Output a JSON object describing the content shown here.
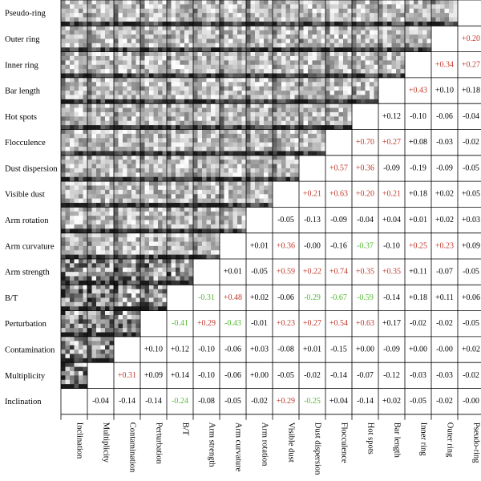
{
  "chart_data": {
    "type": "heatmap",
    "title": "",
    "variables": [
      "Inclination",
      "Multiplicity",
      "Contamination",
      "Perturbation",
      "B/T",
      "Arm strength",
      "Arm curvature",
      "Arm rotation",
      "Visible dust",
      "Dust dispersion",
      "Flocculence",
      "Hot spots",
      "Bar length",
      "Inner ring",
      "Outer ring",
      "Pseudo-ring"
    ],
    "colors": {
      "positive": "#c0392b",
      "negative": "#52b82f",
      "neutral": "#000000"
    },
    "upper_triangle_note": "density histograms (grayscale)",
    "correlations": {
      "Outer ring": [
        "+0.20"
      ],
      "Inner ring": [
        "+0.34",
        "+0.27"
      ],
      "Bar length": [
        "+0.43",
        "+0.10",
        "+0.18"
      ],
      "Hot spots": [
        "+0.12",
        "-0.10",
        "-0.06",
        "-0.04"
      ],
      "Flocculence": [
        "+0.70",
        "+0.27",
        "+0.08",
        "-0.03",
        "-0.02"
      ],
      "Dust dispersion": [
        "+0.57",
        "+0.36",
        "-0.09",
        "-0.19",
        "-0.09",
        "-0.05"
      ],
      "Visible dust": [
        "+0.21",
        "+0.63",
        "+0.20",
        "+0.21",
        "+0.18",
        "+0.02",
        "+0.05"
      ],
      "Arm rotation": [
        "-0.05",
        "-0.13",
        "-0.09",
        "-0.04",
        "+0.04",
        "+0.01",
        "+0.02",
        "+0.03"
      ],
      "Arm curvature": [
        "+0.01",
        "+0.36",
        "-0.00",
        "-0.16",
        "-0.37",
        "-0.10",
        "+0.25",
        "+0.23",
        "+0.09"
      ],
      "Arm strength": [
        "+0.01",
        "-0.05",
        "+0.59",
        "+0.22",
        "+0.74",
        "+0.35",
        "+0.35",
        "+0.11",
        "-0.07",
        "-0.05"
      ],
      "B/T": [
        "-0.31",
        "+0.48",
        "+0.02",
        "-0.06",
        "-0.29",
        "-0.67",
        "-0.59",
        "-0.14",
        "+0.18",
        "+0.11",
        "+0.06"
      ],
      "Perturbation": [
        "-0.41",
        "+0.29",
        "-0.43",
        "-0.01",
        "+0.23",
        "+0.27",
        "+0.54",
        "+0.63",
        "+0.17",
        "-0.02",
        "-0.02",
        "-0.05"
      ],
      "Contamination": [
        "+0.10",
        "+0.12",
        "-0.10",
        "-0.06",
        "+0.03",
        "-0.08",
        "+0.01",
        "-0.15",
        "+0.00",
        "-0.09",
        "+0.00",
        "-0.00",
        "+0.02"
      ],
      "Multiplicity": [
        "+0.31",
        "+0.09",
        "+0.14",
        "-0.10",
        "-0.06",
        "+0.00",
        "-0.05",
        "-0.02",
        "-0.14",
        "-0.07",
        "-0.12",
        "-0.03",
        "-0.03",
        "-0.02"
      ],
      "Inclination": [
        "-0.04",
        "-0.14",
        "-0.14",
        "-0.24",
        "-0.08",
        "-0.05",
        "-0.02",
        "+0.29",
        "-0.25",
        "+0.04",
        "-0.14",
        "+0.02",
        "-0.05",
        "-0.02",
        "-0.00"
      ]
    },
    "significant": {
      "Outer ring": [
        1
      ],
      "Inner ring": [
        1,
        1
      ],
      "Bar length": [
        1,
        0,
        0
      ],
      "Hot spots": [
        0,
        0,
        0,
        0
      ],
      "Flocculence": [
        1,
        1,
        0,
        0,
        0
      ],
      "Dust dispersion": [
        1,
        1,
        0,
        0,
        0,
        0
      ],
      "Visible dust": [
        1,
        1,
        1,
        1,
        0,
        0,
        0
      ],
      "Arm rotation": [
        0,
        0,
        0,
        0,
        0,
        0,
        0,
        0
      ],
      "Arm curvature": [
        0,
        1,
        0,
        0,
        1,
        0,
        1,
        1,
        0
      ],
      "Arm strength": [
        0,
        0,
        1,
        1,
        1,
        1,
        1,
        0,
        0,
        0
      ],
      "B/T": [
        1,
        1,
        0,
        0,
        1,
        1,
        1,
        0,
        0,
        0,
        0
      ],
      "Perturbation": [
        1,
        1,
        1,
        0,
        1,
        1,
        1,
        1,
        0,
        0,
        0,
        0
      ],
      "Contamination": [
        0,
        0,
        0,
        0,
        0,
        0,
        0,
        0,
        0,
        0,
        0,
        0,
        0
      ],
      "Multiplicity": [
        1,
        0,
        0,
        0,
        0,
        0,
        0,
        0,
        0,
        0,
        0,
        0,
        0,
        0
      ],
      "Inclination": [
        0,
        0,
        0,
        1,
        0,
        0,
        0,
        1,
        1,
        0,
        0,
        0,
        0,
        0,
        0
      ]
    }
  }
}
